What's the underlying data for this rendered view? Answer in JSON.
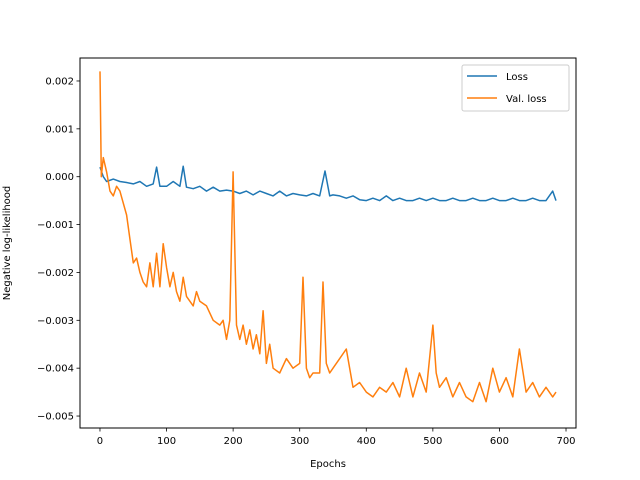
{
  "chart_data": {
    "type": "line",
    "xlabel": "Epochs",
    "ylabel": "Negative log-likelihood",
    "xlim": [
      -30,
      715
    ],
    "ylim": [
      -0.00525,
      0.00248
    ],
    "xticks": [
      0,
      100,
      200,
      300,
      400,
      500,
      600,
      700
    ],
    "yticks": [
      -0.005,
      -0.004,
      -0.003,
      -0.002,
      -0.001,
      0.0,
      0.001,
      0.002
    ],
    "ytick_labels": [
      "−0.005",
      "−0.004",
      "−0.003",
      "−0.002",
      "−0.001",
      "0.000",
      "0.001",
      "0.002"
    ],
    "grid": false,
    "legend_position": "top-right",
    "series": [
      {
        "name": "Loss",
        "color": "#1f77b4",
        "x": [
          0,
          5,
          10,
          20,
          30,
          40,
          50,
          60,
          70,
          80,
          85,
          90,
          100,
          110,
          120,
          125,
          130,
          140,
          150,
          160,
          170,
          180,
          190,
          200,
          210,
          220,
          230,
          240,
          250,
          260,
          270,
          280,
          290,
          300,
          310,
          320,
          330,
          338,
          345,
          350,
          360,
          370,
          380,
          390,
          400,
          410,
          420,
          430,
          440,
          450,
          460,
          470,
          480,
          490,
          500,
          510,
          520,
          530,
          540,
          550,
          560,
          570,
          580,
          590,
          600,
          610,
          620,
          630,
          640,
          650,
          660,
          670,
          680,
          685
        ],
        "y": [
          0.0002,
          0.0,
          -0.0001,
          -5e-05,
          -0.0001,
          -0.00012,
          -0.00015,
          -0.0001,
          -0.0002,
          -0.00015,
          0.0002,
          -0.0002,
          -0.0002,
          -0.0001,
          -0.0002,
          0.00022,
          -0.00022,
          -0.00025,
          -0.0002,
          -0.0003,
          -0.00022,
          -0.0003,
          -0.00028,
          -0.0003,
          -0.00035,
          -0.0003,
          -0.00038,
          -0.0003,
          -0.00035,
          -0.0004,
          -0.0003,
          -0.0004,
          -0.00035,
          -0.00038,
          -0.0004,
          -0.00035,
          -0.0004,
          0.00012,
          -0.0004,
          -0.00038,
          -0.0004,
          -0.00045,
          -0.0004,
          -0.00048,
          -0.0005,
          -0.00045,
          -0.0005,
          -0.0004,
          -0.0005,
          -0.00045,
          -0.0005,
          -0.0005,
          -0.00045,
          -0.0005,
          -0.00045,
          -0.0005,
          -0.0005,
          -0.00045,
          -0.0005,
          -0.0005,
          -0.00045,
          -0.0005,
          -0.0005,
          -0.00045,
          -0.0005,
          -0.0005,
          -0.00045,
          -0.0005,
          -0.0005,
          -0.00045,
          -0.0005,
          -0.0005,
          -0.0003,
          -0.0005
        ]
      },
      {
        "name": "Val. loss",
        "color": "#ff7f0e",
        "x": [
          0,
          2,
          5,
          10,
          15,
          20,
          25,
          30,
          40,
          45,
          50,
          55,
          60,
          65,
          70,
          75,
          80,
          85,
          90,
          95,
          100,
          105,
          110,
          115,
          120,
          125,
          130,
          140,
          145,
          150,
          160,
          170,
          180,
          185,
          190,
          195,
          200,
          205,
          210,
          215,
          220,
          225,
          230,
          235,
          240,
          245,
          250,
          255,
          260,
          270,
          280,
          290,
          300,
          305,
          310,
          315,
          320,
          330,
          335,
          340,
          345,
          350,
          360,
          370,
          380,
          390,
          400,
          410,
          420,
          430,
          440,
          450,
          460,
          470,
          480,
          490,
          500,
          505,
          510,
          520,
          530,
          540,
          550,
          560,
          570,
          580,
          590,
          600,
          610,
          620,
          630,
          640,
          650,
          660,
          670,
          680,
          685
        ],
        "y": [
          0.0022,
          0.0,
          0.0004,
          0.0001,
          -0.0003,
          -0.0004,
          -0.0002,
          -0.0003,
          -0.0008,
          -0.0013,
          -0.0018,
          -0.0017,
          -0.002,
          -0.0022,
          -0.0023,
          -0.0018,
          -0.0023,
          -0.0016,
          -0.0023,
          -0.0014,
          -0.0019,
          -0.0023,
          -0.002,
          -0.0024,
          -0.0026,
          -0.0021,
          -0.0025,
          -0.0027,
          -0.0024,
          -0.0026,
          -0.0027,
          -0.003,
          -0.0031,
          -0.003,
          -0.0034,
          -0.003,
          0.0001,
          -0.0031,
          -0.0034,
          -0.0031,
          -0.0035,
          -0.0032,
          -0.0036,
          -0.0033,
          -0.0037,
          -0.0028,
          -0.0039,
          -0.0035,
          -0.004,
          -0.0041,
          -0.0038,
          -0.004,
          -0.0039,
          -0.0021,
          -0.004,
          -0.0042,
          -0.0041,
          -0.0041,
          -0.0022,
          -0.0039,
          -0.0041,
          -0.004,
          -0.0038,
          -0.0036,
          -0.0044,
          -0.0043,
          -0.0045,
          -0.0046,
          -0.0044,
          -0.0045,
          -0.0043,
          -0.0046,
          -0.004,
          -0.0046,
          -0.0041,
          -0.0045,
          -0.0031,
          -0.0041,
          -0.0044,
          -0.0042,
          -0.0046,
          -0.0043,
          -0.0046,
          -0.0047,
          -0.0043,
          -0.0047,
          -0.004,
          -0.0045,
          -0.0042,
          -0.0046,
          -0.0036,
          -0.0045,
          -0.0043,
          -0.0046,
          -0.0044,
          -0.0046,
          -0.0045
        ]
      }
    ]
  }
}
